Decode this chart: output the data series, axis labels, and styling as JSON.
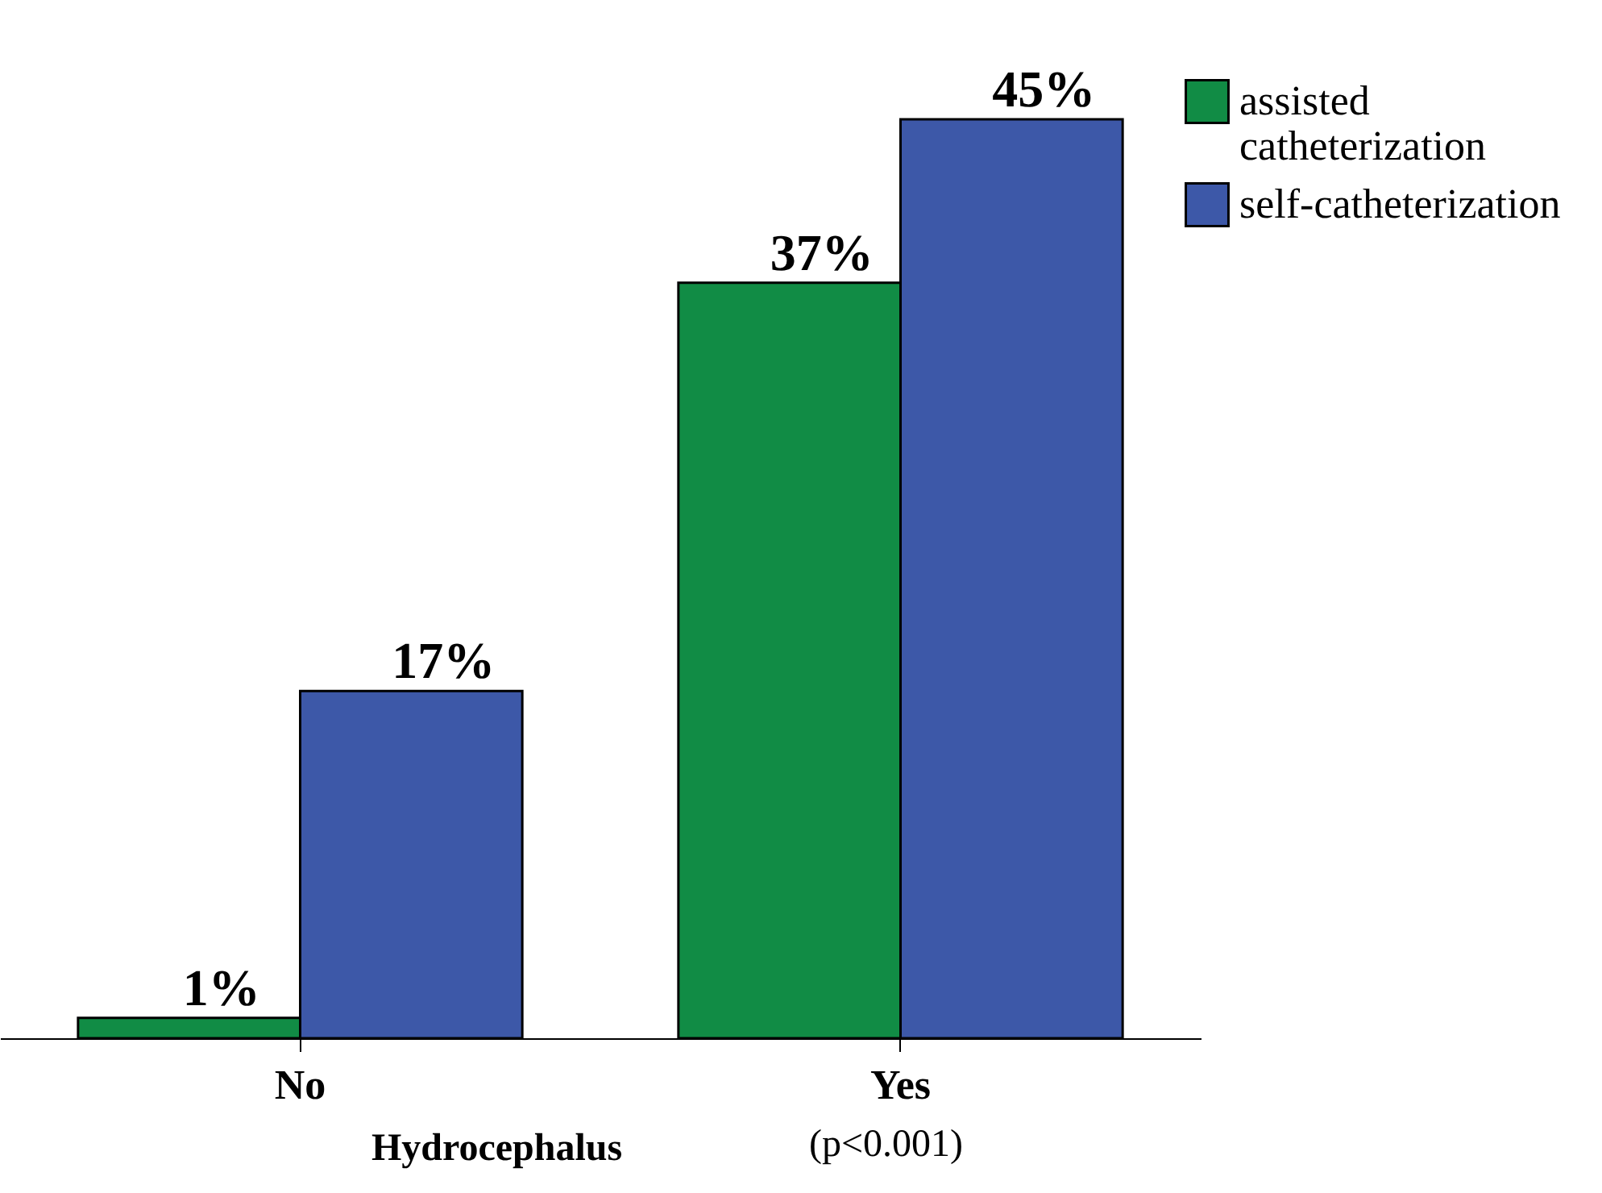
{
  "chart_data": {
    "type": "bar",
    "xlabel": "Hydrocephalus",
    "annotations": [
      "(p<0.001)"
    ],
    "categories": [
      "No",
      "Yes"
    ],
    "series": [
      {
        "name": "assisted catheterization",
        "color": "#118c45",
        "values": [
          1,
          37
        ],
        "value_labels": [
          "1%",
          "37%"
        ]
      },
      {
        "name": "self-catheterization",
        "color": "#3d58a8",
        "values": [
          17,
          45
        ],
        "value_labels": [
          "17%",
          "45%"
        ]
      }
    ],
    "legend": "top right"
  }
}
